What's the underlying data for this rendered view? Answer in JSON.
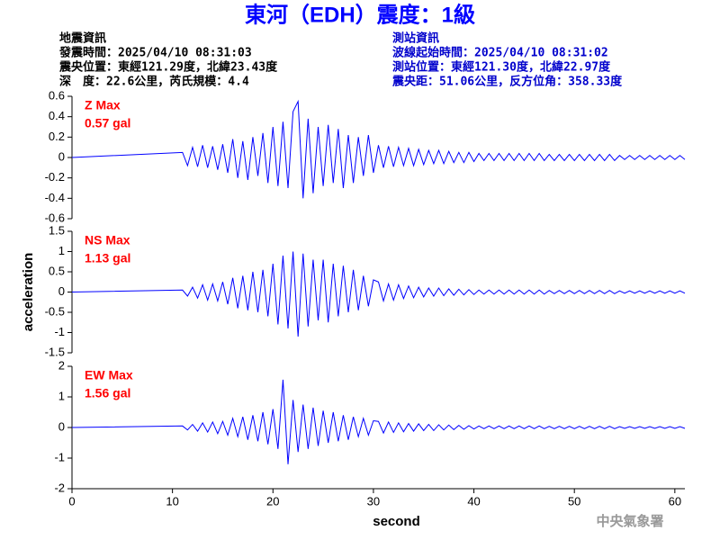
{
  "title": "東河（EDH）震度：1級",
  "info_left": {
    "heading": "地震資訊",
    "lines": [
      "發震時間：2025/04/10 08:31:03",
      "震央位置：東經121.29度，北緯23.43度",
      "深　度：22.6公里，芮氏規模：4.4"
    ]
  },
  "info_right": {
    "heading": "測站資訊",
    "lines": [
      "波線起始時間：2025/04/10 08:31:02",
      "測站位置：東經121.30度，北緯22.97度",
      "震央距：51.06公里，反方位角：358.33度"
    ]
  },
  "footer": "中央氣象署",
  "chart_data": [
    {
      "type": "line",
      "annotation": [
        "Z Max",
        "0.57 gal"
      ],
      "xlim": [
        0,
        61
      ],
      "ylim": [
        -0.6,
        0.6
      ],
      "yticks": [
        -0.6,
        -0.4,
        -0.2,
        0,
        0.2,
        0.4,
        0.6
      ],
      "x": [
        0,
        11,
        11.5,
        12,
        12.5,
        13,
        13.5,
        14,
        14.5,
        15,
        15.5,
        16,
        16.5,
        17,
        17.5,
        18,
        18.5,
        19,
        19.5,
        20,
        20.5,
        21,
        21.5,
        22,
        22.5,
        23,
        23.5,
        24,
        24.5,
        25,
        25.5,
        26,
        26.5,
        27,
        27.5,
        28,
        28.5,
        29,
        29.5,
        30,
        30.5,
        31,
        31.5,
        32,
        32.5,
        33,
        33.5,
        34,
        34.5,
        35,
        35.5,
        36,
        36.5,
        37,
        37.5,
        38,
        38.5,
        39,
        39.5,
        40,
        40.5,
        41,
        41.5,
        42,
        42.5,
        43,
        43.5,
        44,
        44.5,
        45,
        45.5,
        46,
        46.5,
        47,
        47.5,
        48,
        48.5,
        49,
        49.5,
        50,
        50.5,
        51,
        51.5,
        52,
        52.5,
        53,
        53.5,
        54,
        54.5,
        55,
        55.5,
        56,
        56.5,
        57,
        57.5,
        58,
        58.5,
        59,
        59.5,
        60,
        60.5,
        61
      ],
      "series": [
        {
          "name": "Z",
          "color": "#0000ff",
          "values": [
            0,
            0.05,
            -0.08,
            0.1,
            -0.09,
            0.12,
            -0.1,
            0.11,
            -0.12,
            0.13,
            -0.15,
            0.18,
            -0.2,
            0.16,
            -0.22,
            0.2,
            -0.18,
            0.24,
            -0.25,
            0.3,
            -0.28,
            0.35,
            -0.3,
            0.45,
            0.55,
            -0.4,
            0.38,
            -0.35,
            0.3,
            -0.28,
            0.32,
            -0.25,
            0.28,
            -0.3,
            0.22,
            -0.25,
            0.2,
            -0.18,
            0.22,
            -0.15,
            0.12,
            -0.1,
            0.11,
            -0.09,
            0.1,
            -0.08,
            0.09,
            -0.08,
            0.08,
            -0.07,
            0.07,
            -0.06,
            0.07,
            -0.06,
            0.06,
            -0.05,
            0.05,
            -0.05,
            0.05,
            -0.04,
            0.04,
            -0.03,
            0.04,
            -0.03,
            0.04,
            -0.03,
            0.04,
            -0.03,
            0.04,
            -0.03,
            0.04,
            -0.03,
            0.04,
            -0.03,
            0.03,
            -0.03,
            0.03,
            -0.03,
            0.03,
            -0.03,
            0.03,
            -0.03,
            0.03,
            -0.03,
            0.03,
            -0.03,
            0.03,
            -0.03,
            0.02,
            -0.02,
            0.02,
            -0.02,
            0.02,
            -0.02,
            0.02,
            -0.02,
            0.02,
            -0.02,
            0.02,
            -0.02,
            0.02,
            -0.02
          ]
        }
      ]
    },
    {
      "type": "line",
      "annotation": [
        "NS Max",
        "1.13 gal"
      ],
      "ylabel": "acceleration",
      "xlim": [
        0,
        61
      ],
      "ylim": [
        -1.5,
        1.5
      ],
      "yticks": [
        -1.5,
        -1,
        -0.5,
        0,
        0.5,
        1,
        1.5
      ],
      "x": [
        0,
        11,
        11.5,
        12,
        12.5,
        13,
        13.5,
        14,
        14.5,
        15,
        15.5,
        16,
        16.5,
        17,
        17.5,
        18,
        18.5,
        19,
        19.5,
        20,
        20.5,
        21,
        21.5,
        22,
        22.5,
        23,
        23.5,
        24,
        24.5,
        25,
        25.5,
        26,
        26.5,
        27,
        27.5,
        28,
        28.5,
        29,
        29.5,
        30,
        30.5,
        31,
        31.5,
        32,
        32.5,
        33,
        33.5,
        34,
        34.5,
        35,
        35.5,
        36,
        36.5,
        37,
        37.5,
        38,
        38.5,
        39,
        39.5,
        40,
        40.5,
        41,
        41.5,
        42,
        42.5,
        43,
        43.5,
        44,
        44.5,
        45,
        45.5,
        46,
        46.5,
        47,
        47.5,
        48,
        48.5,
        49,
        49.5,
        50,
        50.5,
        51,
        51.5,
        52,
        52.5,
        53,
        53.5,
        54,
        54.5,
        55,
        55.5,
        56,
        56.5,
        57,
        57.5,
        58,
        58.5,
        59,
        59.5,
        60,
        60.5,
        61
      ],
      "series": [
        {
          "name": "NS",
          "color": "#0000ff",
          "values": [
            0,
            0.05,
            -0.1,
            0.12,
            -0.15,
            0.18,
            -0.2,
            0.2,
            -0.22,
            0.25,
            -0.3,
            0.35,
            -0.4,
            0.4,
            -0.45,
            0.5,
            -0.5,
            0.55,
            -0.6,
            0.7,
            -0.8,
            0.9,
            -0.9,
            1.0,
            -1.1,
            0.95,
            -0.85,
            0.8,
            -0.7,
            0.8,
            -0.75,
            0.7,
            -0.6,
            0.65,
            -0.5,
            0.55,
            -0.45,
            0.4,
            -0.35,
            0.3,
            0.25,
            -0.22,
            0.2,
            -0.2,
            0.18,
            -0.16,
            0.15,
            -0.14,
            0.12,
            -0.12,
            0.1,
            -0.1,
            0.1,
            -0.09,
            0.08,
            -0.08,
            0.07,
            -0.07,
            0.06,
            -0.06,
            0.05,
            -0.05,
            0.05,
            -0.05,
            0.05,
            -0.05,
            0.05,
            -0.05,
            0.05,
            -0.05,
            0.05,
            -0.05,
            0.05,
            -0.05,
            0.04,
            -0.04,
            0.04,
            -0.04,
            0.04,
            -0.04,
            0.04,
            -0.04,
            0.04,
            -0.04,
            0.04,
            -0.04,
            0.04,
            -0.04,
            0.03,
            -0.03,
            0.03,
            -0.03,
            0.03,
            -0.03,
            0.03,
            -0.03,
            0.03,
            -0.03,
            0.03,
            -0.03,
            0.03,
            -0.03
          ]
        }
      ]
    },
    {
      "type": "line",
      "annotation": [
        "EW Max",
        "1.56 gal"
      ],
      "xlabel": "second",
      "xlim": [
        0,
        61
      ],
      "xticks": [
        0,
        10,
        20,
        30,
        40,
        50,
        60
      ],
      "ylim": [
        -2,
        2
      ],
      "yticks": [
        -2,
        -1,
        0,
        1,
        2
      ],
      "x": [
        0,
        11,
        11.5,
        12,
        12.5,
        13,
        13.5,
        14,
        14.5,
        15,
        15.5,
        16,
        16.5,
        17,
        17.5,
        18,
        18.5,
        19,
        19.5,
        20,
        20.5,
        21,
        21.5,
        22,
        22.5,
        23,
        23.5,
        24,
        24.5,
        25,
        25.5,
        26,
        26.5,
        27,
        27.5,
        28,
        28.5,
        29,
        29.5,
        30,
        30.5,
        31,
        31.5,
        32,
        32.5,
        33,
        33.5,
        34,
        34.5,
        35,
        35.5,
        36,
        36.5,
        37,
        37.5,
        38,
        38.5,
        39,
        39.5,
        40,
        40.5,
        41,
        41.5,
        42,
        42.5,
        43,
        43.5,
        44,
        44.5,
        45,
        45.5,
        46,
        46.5,
        47,
        47.5,
        48,
        48.5,
        49,
        49.5,
        50,
        50.5,
        51,
        51.5,
        52,
        52.5,
        53,
        53.5,
        54,
        54.5,
        55,
        55.5,
        56,
        56.5,
        57,
        57.5,
        58,
        58.5,
        59,
        59.5,
        60,
        60.5,
        61
      ],
      "series": [
        {
          "name": "EW",
          "color": "#0000ff",
          "values": [
            0,
            0.05,
            -0.08,
            0.1,
            -0.12,
            0.15,
            -0.15,
            0.18,
            -0.2,
            0.2,
            -0.25,
            0.3,
            -0.3,
            0.35,
            -0.4,
            0.4,
            -0.45,
            0.5,
            -0.55,
            0.6,
            -0.7,
            1.56,
            -1.2,
            0.9,
            -0.8,
            0.75,
            -0.7,
            0.65,
            -0.6,
            0.55,
            -0.5,
            0.5,
            -0.45,
            0.4,
            -0.4,
            0.35,
            -0.3,
            0.3,
            -0.25,
            0.22,
            0.2,
            -0.18,
            0.18,
            -0.16,
            0.15,
            -0.14,
            0.13,
            -0.12,
            0.12,
            -0.1,
            0.1,
            -0.1,
            0.09,
            -0.08,
            0.08,
            -0.07,
            0.07,
            -0.06,
            0.06,
            -0.05,
            0.05,
            -0.04,
            0.05,
            -0.04,
            0.05,
            -0.04,
            0.05,
            -0.04,
            0.05,
            -0.04,
            0.05,
            -0.04,
            0.05,
            -0.04,
            0.04,
            -0.04,
            0.04,
            -0.04,
            0.04,
            -0.04,
            0.04,
            -0.04,
            0.04,
            -0.04,
            0.04,
            -0.04,
            0.04,
            -0.04,
            0.03,
            -0.03,
            0.03,
            -0.03,
            0.03,
            -0.03,
            0.03,
            -0.03,
            0.03,
            -0.03,
            0.03,
            -0.03,
            0.03,
            -0.03
          ]
        }
      ]
    }
  ]
}
